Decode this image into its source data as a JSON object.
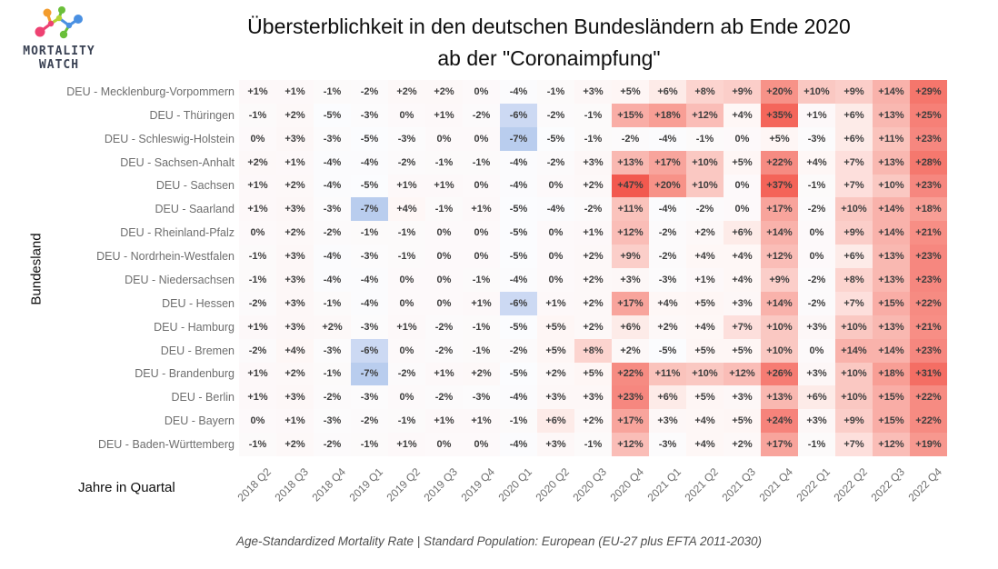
{
  "logo": {
    "line1": "MORTALITY",
    "line2": "WATCH"
  },
  "title": {
    "line1": "Übersterblichkeit in den deutschen Bundesländern ab Ende 2020",
    "line2": "ab der \"Coronaimpfung\""
  },
  "axes": {
    "y_label": "Bundesland",
    "x_label": "Jahre in Quartal"
  },
  "footer": "Age-Standardized Mortality Rate | Standard Population: European (EU-27 plus EFTA 2011-2030)",
  "chart_data": {
    "type": "heatmap",
    "title": "Übersterblichkeit in den deutschen Bundesländern ab Ende 2020 ab der \"Coronaimpfung\"",
    "xlabel": "Jahre in Quartal",
    "ylabel": "Bundesland",
    "value_unit": "percent",
    "x": [
      "2018 Q2",
      "2018 Q3",
      "2018 Q4",
      "2019 Q1",
      "2019 Q2",
      "2019 Q3",
      "2019 Q4",
      "2020 Q1",
      "2020 Q2",
      "2020 Q3",
      "2020 Q4",
      "2021 Q1",
      "2021 Q2",
      "2021 Q3",
      "2021 Q4",
      "2022 Q1",
      "2022 Q2",
      "2022 Q3",
      "2022 Q4"
    ],
    "rows": [
      {
        "name": "DEU - Mecklenburg-Vorpommern",
        "values": [
          1,
          1,
          -1,
          -2,
          2,
          2,
          0,
          -4,
          -1,
          3,
          5,
          6,
          8,
          9,
          20,
          10,
          9,
          14,
          29
        ]
      },
      {
        "name": "DEU - Thüringen",
        "values": [
          -1,
          2,
          -5,
          -3,
          0,
          1,
          -2,
          -6,
          -2,
          -1,
          15,
          18,
          12,
          4,
          35,
          1,
          6,
          13,
          25
        ]
      },
      {
        "name": "DEU - Schleswig-Holstein",
        "values": [
          0,
          3,
          -3,
          -5,
          -3,
          0,
          0,
          -7,
          -5,
          -1,
          -2,
          -4,
          -1,
          0,
          5,
          -3,
          6,
          11,
          23
        ]
      },
      {
        "name": "DEU - Sachsen-Anhalt",
        "values": [
          2,
          1,
          -4,
          -4,
          -2,
          -1,
          -1,
          -4,
          -2,
          3,
          13,
          17,
          10,
          5,
          22,
          4,
          7,
          13,
          28
        ]
      },
      {
        "name": "DEU - Sachsen",
        "values": [
          1,
          2,
          -4,
          -5,
          1,
          1,
          0,
          -4,
          0,
          2,
          47,
          20,
          10,
          0,
          37,
          -1,
          7,
          10,
          23
        ]
      },
      {
        "name": "DEU - Saarland",
        "values": [
          1,
          3,
          -3,
          -7,
          4,
          -1,
          1,
          -5,
          -4,
          -2,
          11,
          -4,
          -2,
          0,
          17,
          -2,
          10,
          14,
          18
        ]
      },
      {
        "name": "DEU - Rheinland-Pfalz",
        "values": [
          0,
          2,
          -2,
          -1,
          -1,
          0,
          0,
          -5,
          0,
          1,
          12,
          -2,
          2,
          6,
          14,
          0,
          9,
          14,
          21
        ]
      },
      {
        "name": "DEU - Nordrhein-Westfalen",
        "values": [
          -1,
          3,
          -4,
          -3,
          -1,
          0,
          0,
          -5,
          0,
          2,
          9,
          -2,
          4,
          4,
          12,
          0,
          6,
          13,
          23
        ]
      },
      {
        "name": "DEU - Niedersachsen",
        "values": [
          -1,
          3,
          -4,
          -4,
          0,
          0,
          -1,
          -4,
          0,
          2,
          3,
          -3,
          1,
          4,
          9,
          -2,
          8,
          13,
          23
        ]
      },
      {
        "name": "DEU - Hessen",
        "values": [
          -2,
          3,
          -1,
          -4,
          0,
          0,
          1,
          -6,
          1,
          2,
          17,
          4,
          5,
          3,
          14,
          -2,
          7,
          15,
          22
        ]
      },
      {
        "name": "DEU - Hamburg",
        "values": [
          1,
          3,
          2,
          -3,
          1,
          -2,
          -1,
          -5,
          5,
          2,
          6,
          2,
          4,
          7,
          10,
          3,
          10,
          13,
          21
        ]
      },
      {
        "name": "DEU - Bremen",
        "values": [
          -2,
          4,
          -3,
          -6,
          0,
          -2,
          -1,
          -2,
          5,
          8,
          2,
          -5,
          5,
          5,
          10,
          0,
          14,
          14,
          23
        ]
      },
      {
        "name": "DEU - Brandenburg",
        "values": [
          1,
          2,
          -1,
          -7,
          -2,
          1,
          2,
          -5,
          2,
          5,
          22,
          11,
          10,
          12,
          26,
          3,
          10,
          18,
          31
        ]
      },
      {
        "name": "DEU - Berlin",
        "values": [
          1,
          3,
          -2,
          -3,
          0,
          -2,
          -3,
          -4,
          3,
          3,
          23,
          6,
          5,
          3,
          13,
          6,
          10,
          15,
          22
        ]
      },
      {
        "name": "DEU - Bayern",
        "values": [
          0,
          1,
          -3,
          -2,
          -1,
          1,
          1,
          -1,
          6,
          2,
          17,
          3,
          4,
          5,
          24,
          3,
          9,
          15,
          22
        ]
      },
      {
        "name": "DEU - Baden-Württemberg",
        "values": [
          -1,
          2,
          -2,
          -1,
          1,
          0,
          0,
          -4,
          3,
          -1,
          12,
          -3,
          4,
          2,
          17,
          -1,
          7,
          12,
          19
        ]
      }
    ],
    "color_scale": {
      "negative_strong": "#b9cdee",
      "neutral": "#fdfdfe",
      "positive_strong": "#f2584e",
      "stops": [
        [
          -7,
          "#b9cdee"
        ],
        [
          -6,
          "#ccd9f3"
        ],
        [
          -5,
          "#fbfcfe"
        ],
        [
          5,
          "#fef6f5"
        ],
        [
          8,
          "#fcd4cf"
        ],
        [
          10,
          "#fac8c2"
        ],
        [
          14,
          "#f9b2ab"
        ],
        [
          17,
          "#f8a49c"
        ],
        [
          20,
          "#f79288"
        ],
        [
          23,
          "#f6877f"
        ],
        [
          26,
          "#f67c73"
        ],
        [
          29,
          "#f5766c"
        ],
        [
          31,
          "#f46e64"
        ],
        [
          35,
          "#f4665b"
        ],
        [
          48,
          "#f2584e"
        ]
      ]
    },
    "grid": false,
    "legend": "none"
  }
}
